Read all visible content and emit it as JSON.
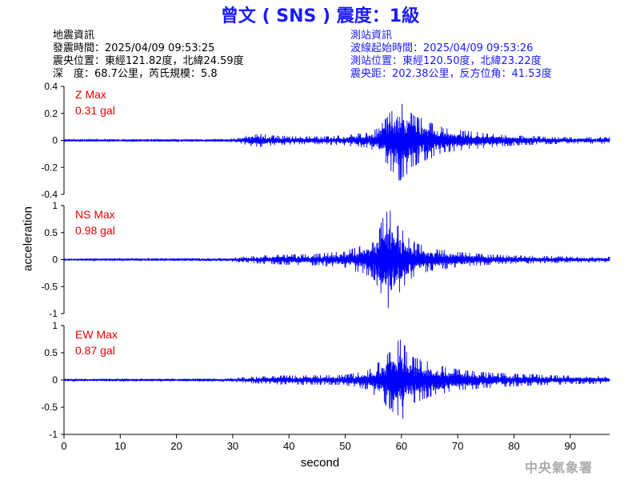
{
  "title": "曾文 ( SNS ) 震度：1級",
  "quake_info": {
    "heading": "地震資訊",
    "origin_time": "發震時間：2025/04/09 09:53:25",
    "epicenter": "震央位置：東經121.82度，北緯24.59度",
    "depth_magnitude": "深　度：68.7公里，芮氏規模：5.8"
  },
  "station_info": {
    "heading": "測站資訊",
    "wave_start": "波線起始時間：2025/04/09 09:53:26",
    "station_location": "測站位置：東經120.50度，北緯23.22度",
    "distance_azimuth": "震央距：202.38公里，反方位角：41.53度"
  },
  "agency": "中央氣象署",
  "colors": {
    "title": "#1a1aff",
    "station_info": "#1a1aff",
    "trace": "#0000ff",
    "max_label": "#e60000",
    "agency": "#aaaaaa"
  },
  "chart_data": {
    "type": "line",
    "xlabel": "second",
    "ylabel": "acceleration",
    "xlim": [
      0,
      97
    ],
    "x_ticks": [
      "0",
      "10",
      "20",
      "30",
      "40",
      "50",
      "60",
      "70",
      "80",
      "90"
    ],
    "panels": [
      {
        "name": "Z",
        "max_label": "Z Max",
        "max_value": "0.31 gal",
        "ylim": [
          -0.4,
          0.4
        ],
        "y_ticks": [
          "0.4",
          "0.2",
          "0",
          "-0.2",
          "-0.4"
        ],
        "envelope": [
          [
            0,
            0.006
          ],
          [
            10,
            0.006
          ],
          [
            20,
            0.006
          ],
          [
            29,
            0.007
          ],
          [
            31,
            0.02
          ],
          [
            33,
            0.045
          ],
          [
            35,
            0.05
          ],
          [
            38,
            0.035
          ],
          [
            42,
            0.03
          ],
          [
            46,
            0.03
          ],
          [
            50,
            0.04
          ],
          [
            54,
            0.06
          ],
          [
            56,
            0.1
          ],
          [
            57,
            0.16
          ],
          [
            58,
            0.22
          ],
          [
            59,
            0.28
          ],
          [
            60,
            0.31
          ],
          [
            61,
            0.26
          ],
          [
            62,
            0.2
          ],
          [
            64,
            0.16
          ],
          [
            66,
            0.12
          ],
          [
            68,
            0.09
          ],
          [
            70,
            0.08
          ],
          [
            73,
            0.065
          ],
          [
            76,
            0.05
          ],
          [
            80,
            0.04
          ],
          [
            85,
            0.03
          ],
          [
            90,
            0.025
          ],
          [
            95,
            0.025
          ],
          [
            97,
            0.025
          ]
        ]
      },
      {
        "name": "NS",
        "max_label": "NS Max",
        "max_value": "0.98 gal",
        "ylim": [
          -1,
          1
        ],
        "y_ticks": [
          "1",
          "0.5",
          "0",
          "-0.5",
          "-1"
        ],
        "envelope": [
          [
            0,
            0.012
          ],
          [
            20,
            0.015
          ],
          [
            27,
            0.03
          ],
          [
            28,
            0.02
          ],
          [
            31,
            0.05
          ],
          [
            35,
            0.08
          ],
          [
            40,
            0.1
          ],
          [
            45,
            0.11
          ],
          [
            50,
            0.16
          ],
          [
            55,
            0.35
          ],
          [
            57,
            0.85
          ],
          [
            58,
            0.98
          ],
          [
            59,
            0.7
          ],
          [
            60,
            0.6
          ],
          [
            62,
            0.35
          ],
          [
            65,
            0.22
          ],
          [
            70,
            0.15
          ],
          [
            75,
            0.1
          ],
          [
            80,
            0.08
          ],
          [
            85,
            0.07
          ],
          [
            90,
            0.06
          ],
          [
            97,
            0.05
          ]
        ]
      },
      {
        "name": "EW",
        "max_label": "EW Max",
        "max_value": "0.87 gal",
        "ylim": [
          -1,
          1
        ],
        "y_ticks": [
          "1",
          "0.5",
          "0",
          "-0.5",
          "-1"
        ],
        "envelope": [
          [
            0,
            0.012
          ],
          [
            20,
            0.015
          ],
          [
            27,
            0.02
          ],
          [
            30,
            0.04
          ],
          [
            35,
            0.07
          ],
          [
            40,
            0.09
          ],
          [
            45,
            0.09
          ],
          [
            50,
            0.1
          ],
          [
            54,
            0.18
          ],
          [
            56,
            0.35
          ],
          [
            58,
            0.55
          ],
          [
            59,
            0.65
          ],
          [
            60,
            0.87
          ],
          [
            61,
            0.5
          ],
          [
            63,
            0.4
          ],
          [
            66,
            0.3
          ],
          [
            70,
            0.2
          ],
          [
            75,
            0.15
          ],
          [
            80,
            0.12
          ],
          [
            85,
            0.1
          ],
          [
            90,
            0.08
          ],
          [
            97,
            0.07
          ]
        ]
      }
    ]
  }
}
